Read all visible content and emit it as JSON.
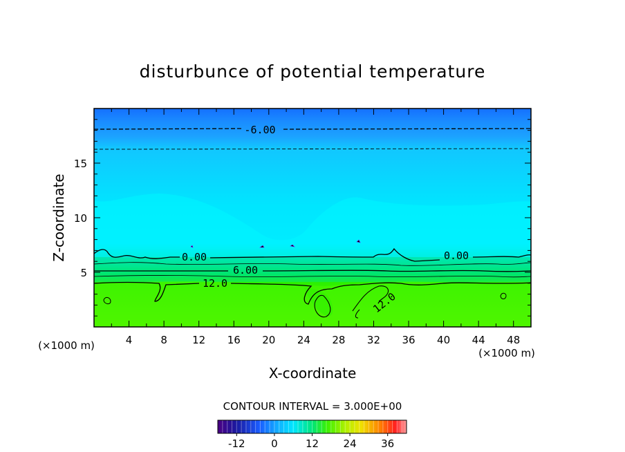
{
  "chart_data": {
    "type": "heatmap",
    "title": "disturbunce of potential temperature",
    "xlabel": "X-coordinate",
    "ylabel": "Z-coordinate",
    "x_unit": "(×1000 m)",
    "y_unit": "(×1000 m)",
    "xlim": [
      0,
      50
    ],
    "ylim": [
      0,
      20
    ],
    "x_ticks": [
      4,
      8,
      12,
      16,
      20,
      24,
      28,
      32,
      36,
      40,
      44,
      48
    ],
    "y_ticks": [
      5,
      10,
      15
    ],
    "contour_interval_text": "CONTOUR INTERVAL = 3.000E+00",
    "contour_labels": [
      "-6.00",
      "0.00",
      "0.00",
      "6.00",
      "12.0",
      "12.0"
    ],
    "colorbar": {
      "range": [
        -18,
        42
      ],
      "ticks": [
        "-12",
        "0",
        "12",
        "24",
        "36"
      ],
      "tick_values": [
        -12,
        0,
        12,
        24,
        36
      ]
    },
    "contour_levels": [
      {
        "value": -9,
        "z": 16.2,
        "style": "dashed"
      },
      {
        "value": -6,
        "z": 18.1,
        "style": "dashed"
      },
      {
        "value": 0,
        "z": 6.3,
        "style": "solid"
      },
      {
        "value": 6,
        "z": 5.0,
        "style": "solid"
      },
      {
        "value": 12,
        "z": 4.0,
        "style": "solid"
      }
    ],
    "regions": [
      {
        "name": "upper",
        "z_range": [
          16,
          20
        ],
        "value_range": [
          -12,
          -6
        ],
        "color": "#1a8cff"
      },
      {
        "name": "middle",
        "z_range": [
          7,
          16
        ],
        "value_range": [
          -6,
          0
        ],
        "color": "#00e6ff"
      },
      {
        "name": "lower",
        "z_range": [
          0,
          4
        ],
        "value_range": [
          12,
          18
        ],
        "color": "#4df500"
      }
    ]
  }
}
